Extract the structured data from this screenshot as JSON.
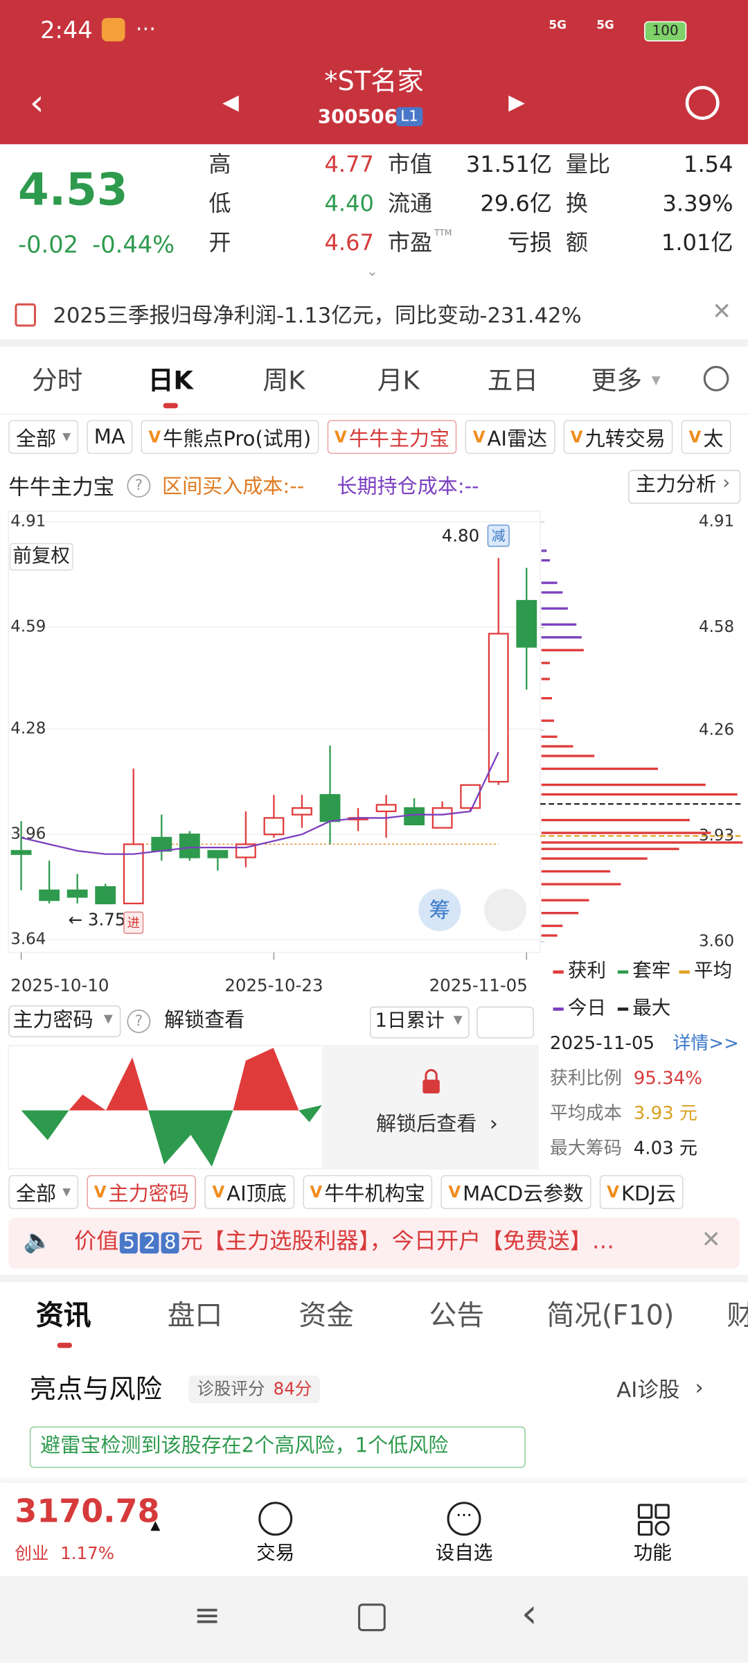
{
  "status_bar": {
    "time": "2:44",
    "signal1": "5G",
    "signal2": "5G",
    "battery": "100"
  },
  "header": {
    "title": "*ST名家",
    "code": "300506",
    "badge": "L1"
  },
  "quote": {
    "price": "4.53",
    "change": "-0.02",
    "change_pct": "-0.44%",
    "fields": [
      {
        "label": "高",
        "value": "4.77"
      },
      {
        "label": "低",
        "value": "4.40"
      },
      {
        "label": "开",
        "value": "4.67"
      },
      {
        "label": "市值",
        "value": "31.51亿"
      },
      {
        "label": "流通",
        "value": "29.6亿"
      },
      {
        "label": "市盈",
        "sup": "TTM",
        "value": "亏损"
      },
      {
        "label": "量比",
        "value": "1.54"
      },
      {
        "label": "换",
        "value": "3.39%"
      },
      {
        "label": "额",
        "value": "1.01亿"
      }
    ]
  },
  "notice": "2025三季报归母净利润-1.13亿元，同比变动-231.42%",
  "period_tabs": [
    "分时",
    "日K",
    "周K",
    "月K",
    "五日",
    "更多"
  ],
  "indicator_tabs": [
    "全部",
    "MA",
    "牛熊点Pro(试用)",
    "牛牛主力宝",
    "AI雷达",
    "九转交易",
    "太"
  ],
  "indicator_bar": {
    "name": "牛牛主力宝",
    "buy_cost": "区间买入成本:--",
    "hold_cost": "长期持仓成本:--",
    "button": "主力分析"
  },
  "chart_data": {
    "type": "candlestick",
    "adjust": "前复权",
    "chip_button": "筹",
    "categories": [
      "2025-10-10",
      null,
      null,
      null,
      null,
      null,
      null,
      null,
      null,
      "2025-10-23",
      null,
      null,
      null,
      null,
      null,
      null,
      null,
      null,
      "2025-11-05"
    ],
    "open": [
      3.91,
      3.79,
      3.79,
      3.8,
      3.75,
      3.95,
      3.96,
      3.91,
      3.89,
      3.96,
      4.02,
      4.08,
      4.01,
      4.03,
      4.04,
      3.98,
      4.04,
      4.12,
      4.67
    ],
    "high": [
      4.0,
      3.88,
      3.84,
      3.81,
      4.16,
      4.02,
      3.97,
      3.91,
      4.03,
      4.08,
      4.08,
      4.23,
      4.04,
      4.08,
      4.07,
      4.06,
      4.11,
      4.8,
      4.77
    ],
    "low": [
      3.79,
      3.75,
      3.75,
      3.75,
      3.75,
      3.88,
      3.88,
      3.85,
      3.86,
      3.95,
      3.98,
      3.93,
      3.97,
      3.95,
      3.99,
      3.98,
      4.03,
      4.11,
      4.4
    ],
    "close": [
      3.9,
      3.76,
      3.77,
      3.75,
      3.93,
      3.91,
      3.89,
      3.89,
      3.93,
      4.01,
      4.04,
      4.0,
      4.01,
      4.05,
      3.99,
      4.04,
      4.11,
      4.57,
      4.53
    ],
    "ma": {
      "color": "#7b3fbf",
      "values": [
        3.95,
        3.93,
        3.91,
        3.9,
        3.9,
        3.91,
        3.92,
        3.92,
        3.92,
        3.94,
        3.96,
        4.0,
        4.01,
        4.01,
        4.02,
        4.02,
        4.03,
        4.21,
        null
      ]
    },
    "up_color": "#e03b3b",
    "down_color": "#2e9a4d",
    "ylim": [
      3.64,
      4.91
    ],
    "yticks": [
      4.91,
      4.59,
      4.28,
      3.96,
      3.64
    ],
    "y2lim": [
      3.6,
      4.91
    ],
    "y2ticks": [
      4.91,
      4.58,
      4.26,
      3.93,
      {
        "value": 3.6,
        "label": "3.60"
      }
    ],
    "grid": true,
    "annotations": {
      "high": "4.80",
      "sell": "减",
      "low": "← 3.75",
      "buy": "进"
    },
    "chips": {
      "prices": [
        4.82,
        4.79,
        4.72,
        4.69,
        4.64,
        4.59,
        4.55,
        4.51,
        4.47,
        4.42,
        4.36,
        4.29,
        4.24,
        4.21,
        4.18,
        4.14,
        4.09,
        4.06,
        3.98,
        3.94,
        3.91,
        3.89,
        3.86,
        3.82,
        3.78,
        3.73,
        3.69,
        3.65,
        3.62
      ],
      "amounts": [
        5,
        8,
        15,
        20,
        25,
        33,
        38,
        40,
        8,
        8,
        10,
        12,
        15,
        30,
        50,
        110,
        155,
        185,
        140,
        160,
        190,
        130,
        100,
        65,
        75,
        45,
        35,
        20,
        15
      ],
      "average": 3.93,
      "max": 4.03,
      "profit_color": "#e03b3b",
      "today_color": "#7b3fbf"
    }
  },
  "chip_legend": [
    "获利",
    "套牢",
    "平均",
    "今日",
    "最大"
  ],
  "sub_indicator": {
    "name": "主力密码",
    "unlock": "解锁查看",
    "period": "1日累计",
    "locked": "解锁后查看"
  },
  "chip_summary": {
    "date": "2025-11-05",
    "detail": "详情>>",
    "rows": [
      {
        "label": "获利比例",
        "value": "95.34%"
      },
      {
        "label": "平均成本",
        "value": "3.93 元"
      },
      {
        "label": "最大筹码",
        "value": "4.03 元"
      }
    ]
  },
  "sub_tabs": [
    "全部",
    "主力密码",
    "AI顶底",
    "牛牛机构宝",
    "MACD云参数",
    "KDJ云"
  ],
  "ad": {
    "prefix": "价值",
    "digits": [
      "5",
      "2",
      "8"
    ],
    "suffix": "元【主力选股利器】，今日开户【免费送】…"
  },
  "news_tabs": [
    "资讯",
    "盘口",
    "资金",
    "公告",
    "简况(F10)",
    "财"
  ],
  "highlights": {
    "title": "亮点与风险",
    "score_label": "诊股评分",
    "score": "84分",
    "ai": "AI诊股",
    "warning": "避雷宝检测到该股存在2个高风险，1个低风险"
  },
  "bottom_bar": {
    "index_value": "3170.78",
    "index_name": "创业",
    "index_change": "1.17%",
    "buttons": [
      "交易",
      "设自选",
      "功能"
    ]
  }
}
